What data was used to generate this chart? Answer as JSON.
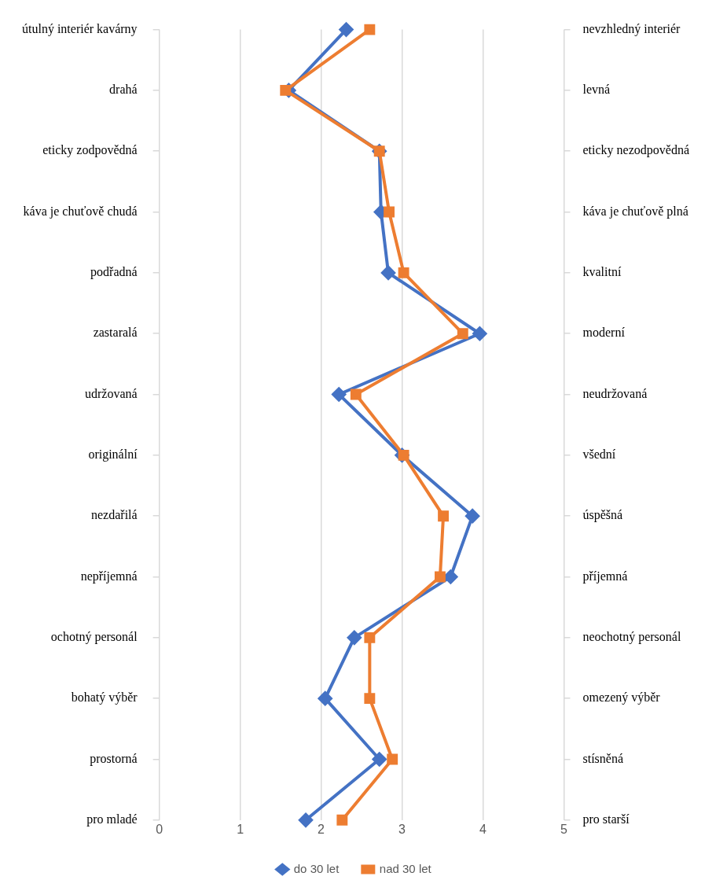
{
  "chart_data": {
    "type": "line",
    "orientation": "horizontal",
    "categories": [
      "útulný interiér kavárny",
      "drahá",
      "eticky zodpovědná",
      "káva je chuťově chudá",
      "podřadná",
      "zastaralá",
      "udržovaná",
      "originální",
      "nezdařilá",
      "nepříjemná",
      "ochotný personál",
      "bohatý výběr",
      "prostorná",
      "pro mladé"
    ],
    "y2_categories": [
      "nevzhledný interiér",
      "levná",
      "eticky nezodpovědná",
      "káva je chuťově plná",
      "kvalitní",
      "moderní",
      "neudržovaná",
      "všední",
      "úspěšná",
      "příjemná",
      "neochotný personál",
      "omezený výběr",
      "stísněná",
      "pro starší"
    ],
    "series": [
      {
        "name": "do 30 let",
        "color": "#4472c4",
        "marker": "diamond",
        "values": [
          2.31,
          1.6,
          2.72,
          2.74,
          2.83,
          3.96,
          2.22,
          3.0,
          3.87,
          3.6,
          2.41,
          2.05,
          2.72,
          1.81
        ]
      },
      {
        "name": "nad 30 let",
        "color": "#ed7d31",
        "marker": "square",
        "values": [
          2.6,
          1.56,
          2.72,
          2.84,
          3.02,
          3.75,
          2.43,
          3.02,
          3.51,
          3.47,
          2.6,
          2.6,
          2.88,
          2.26
        ]
      }
    ],
    "xlim": [
      0,
      5
    ],
    "xticks": [
      0,
      1,
      2,
      3,
      4,
      5
    ],
    "grid": "x",
    "legend": "bottom"
  }
}
